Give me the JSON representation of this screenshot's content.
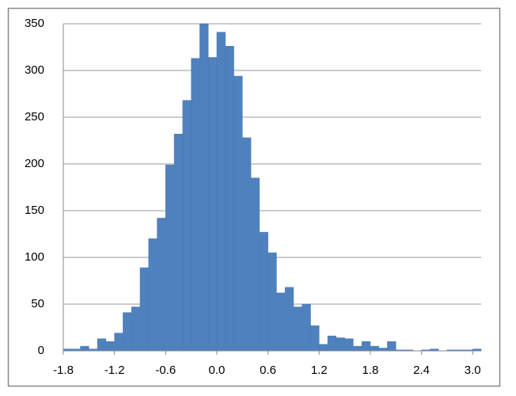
{
  "chart_data": {
    "type": "histogram",
    "bins": [
      -1.8,
      -1.7,
      -1.6,
      -1.5,
      -1.4,
      -1.3,
      -1.2,
      -1.1,
      -1.0,
      -0.9,
      -0.8,
      -0.7,
      -0.6,
      -0.5,
      -0.4,
      -0.3,
      -0.2,
      -0.1,
      0.0,
      0.1,
      0.2,
      0.3,
      0.4,
      0.5,
      0.6,
      0.7,
      0.8,
      0.9,
      1.0,
      1.1,
      1.2,
      1.3,
      1.4,
      1.5,
      1.6,
      1.7,
      1.8,
      1.9,
      2.0,
      2.1,
      2.2,
      2.3,
      2.4,
      2.5,
      2.6,
      2.7,
      2.8,
      2.9,
      3.0,
      3.1
    ],
    "values": [
      2,
      2,
      5,
      2,
      13,
      10,
      19,
      41,
      47,
      89,
      120,
      142,
      199,
      232,
      268,
      313,
      350,
      314,
      341,
      326,
      294,
      228,
      185,
      127,
      105,
      62,
      68,
      47,
      50,
      27,
      7,
      16,
      14,
      13,
      5,
      10,
      5,
      3,
      10,
      1,
      1,
      0,
      1,
      2,
      0,
      1,
      1,
      1,
      2
    ],
    "color": "#4f81bd",
    "xlim": [
      -1.8,
      3.1
    ],
    "xticks": [
      -1.8,
      -1.2,
      -0.6,
      {
        "value": 0,
        "label": "0.0"
      },
      0.6,
      1.2,
      1.8,
      2.4,
      {
        "value": 3,
        "label": "3.0"
      }
    ],
    "ylim": [
      0,
      350
    ],
    "yticks": [
      0,
      50,
      100,
      150,
      200,
      250,
      300,
      350
    ],
    "grid": true
  }
}
